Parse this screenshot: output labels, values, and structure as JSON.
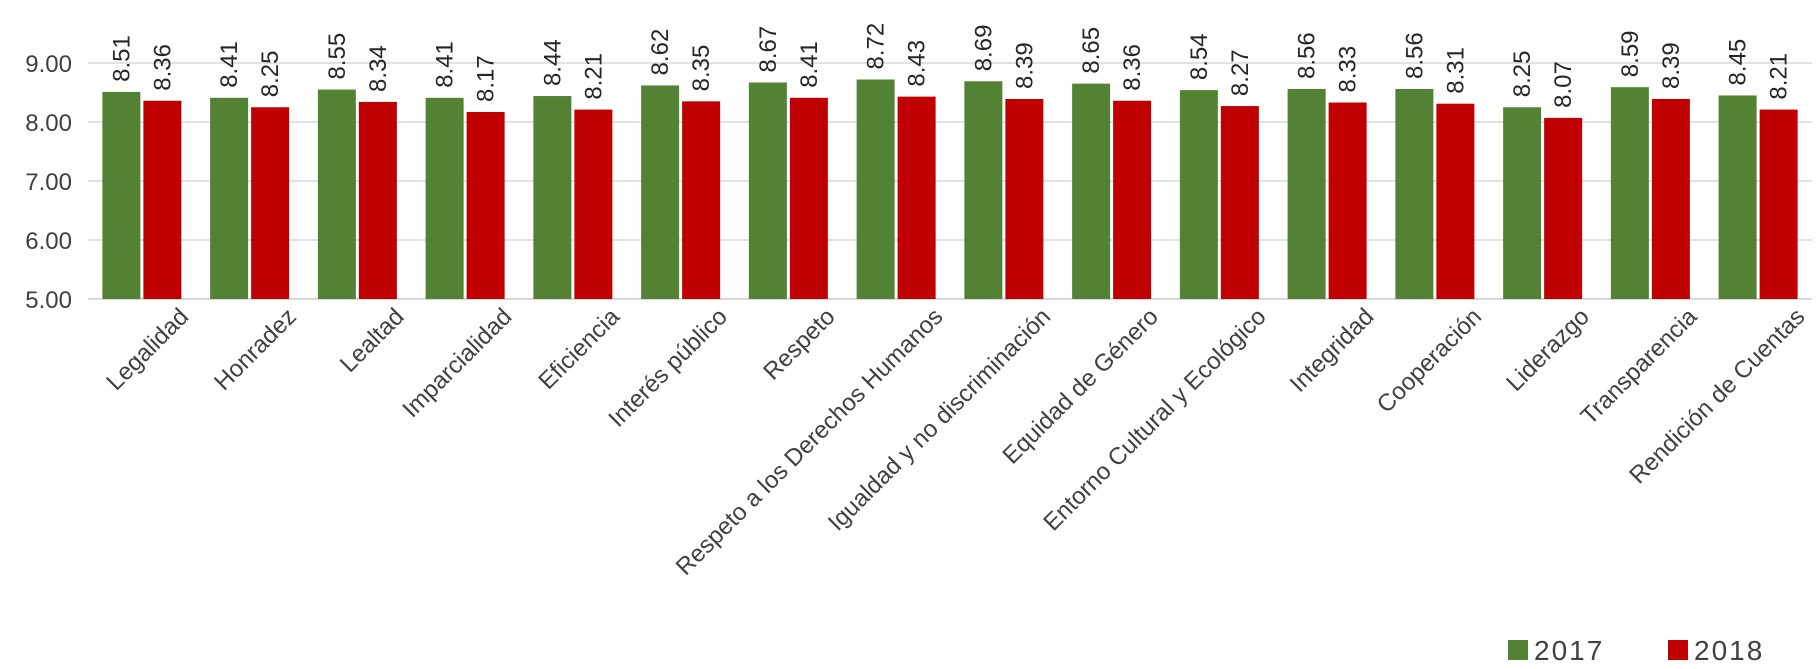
{
  "chart_data": {
    "type": "bar",
    "categories": [
      "Legalidad",
      "Honradez",
      "Lealtad",
      "Imparcialidad",
      "Eficiencia",
      "Interés público",
      "Respeto",
      "Respeto  a los Derechos Humanos",
      "Igualdad y no discriminación",
      "Equidad de Género",
      "Entorno Cultural y Ecológico",
      "Integridad",
      "Cooperación",
      "Liderazgo",
      "Transparencia",
      "Rendición de Cuentas"
    ],
    "series": [
      {
        "name": "2017",
        "color": "#548235",
        "values": [
          8.51,
          8.41,
          8.55,
          8.41,
          8.44,
          8.62,
          8.67,
          8.72,
          8.69,
          8.65,
          8.54,
          8.56,
          8.56,
          8.25,
          8.59,
          8.45
        ]
      },
      {
        "name": "2018",
        "color": "#C00000",
        "values": [
          8.36,
          8.25,
          8.34,
          8.17,
          8.21,
          8.35,
          8.41,
          8.43,
          8.39,
          8.36,
          8.27,
          8.33,
          8.31,
          8.07,
          8.39,
          8.21
        ]
      }
    ],
    "yticks": [
      "5.00",
      "6.00",
      "7.00",
      "8.00",
      "9.00"
    ],
    "ylim": [
      5,
      9.5
    ],
    "grid": true,
    "legend_position": "bottom-right",
    "data_labels": true
  }
}
